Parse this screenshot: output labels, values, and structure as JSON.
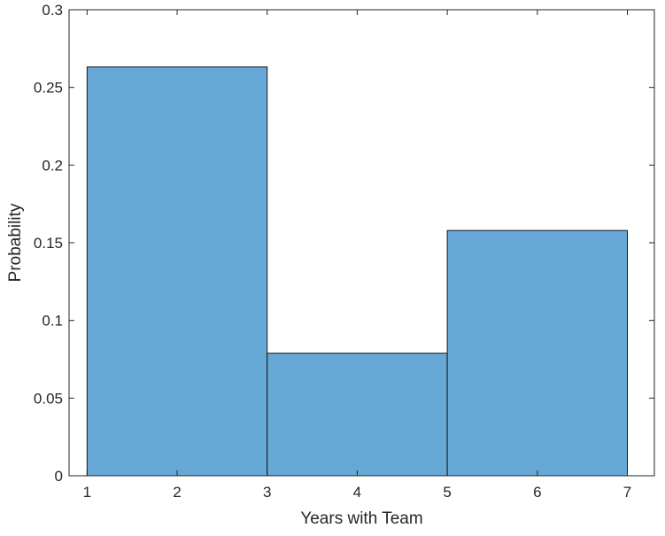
{
  "chart_data": {
    "type": "bar",
    "histogram": true,
    "bin_edges": [
      1,
      3,
      5,
      7
    ],
    "values": [
      0.2632,
      0.0789,
      0.1579
    ],
    "bar_color": "#66a8d6",
    "bar_edge_color": "#1a1a1a",
    "xlabel": "Years with Team",
    "ylabel": "Probability",
    "xlim": [
      0.8,
      7.3
    ],
    "ylim": [
      0,
      0.3
    ],
    "xticks": [
      1,
      2,
      3,
      4,
      5,
      6,
      7
    ],
    "xtick_labels": [
      "1",
      "2",
      "3",
      "4",
      "5",
      "6",
      "7"
    ],
    "yticks": [
      0,
      0.05,
      0.1,
      0.15,
      0.2,
      0.25,
      0.3
    ],
    "ytick_labels": [
      "0",
      "0.05",
      "0.1",
      "0.15",
      "0.2",
      "0.25",
      "0.3"
    ],
    "grid": false,
    "box": true
  }
}
